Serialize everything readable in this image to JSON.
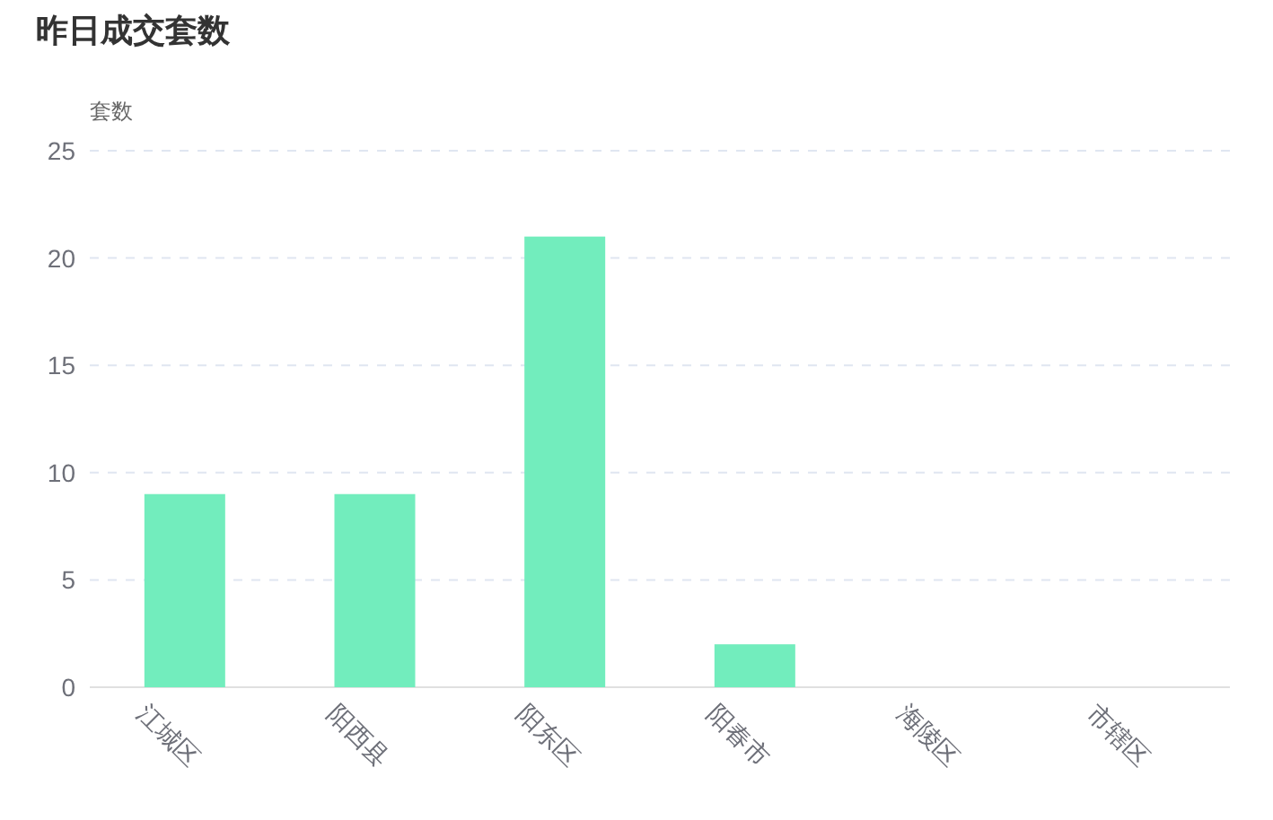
{
  "chart_data": {
    "type": "bar",
    "title": "昨日成交套数",
    "ylabel": "套数",
    "categories": [
      "江城区",
      "阳西县",
      "阳东区",
      "阳春市",
      "海陵区",
      "市辖区"
    ],
    "values": [
      9,
      9,
      21,
      2,
      0,
      0
    ],
    "color": "#72edbd",
    "ylim": [
      0,
      25
    ],
    "yticks": [
      0,
      5,
      10,
      15,
      20,
      25
    ],
    "grid": "y"
  }
}
